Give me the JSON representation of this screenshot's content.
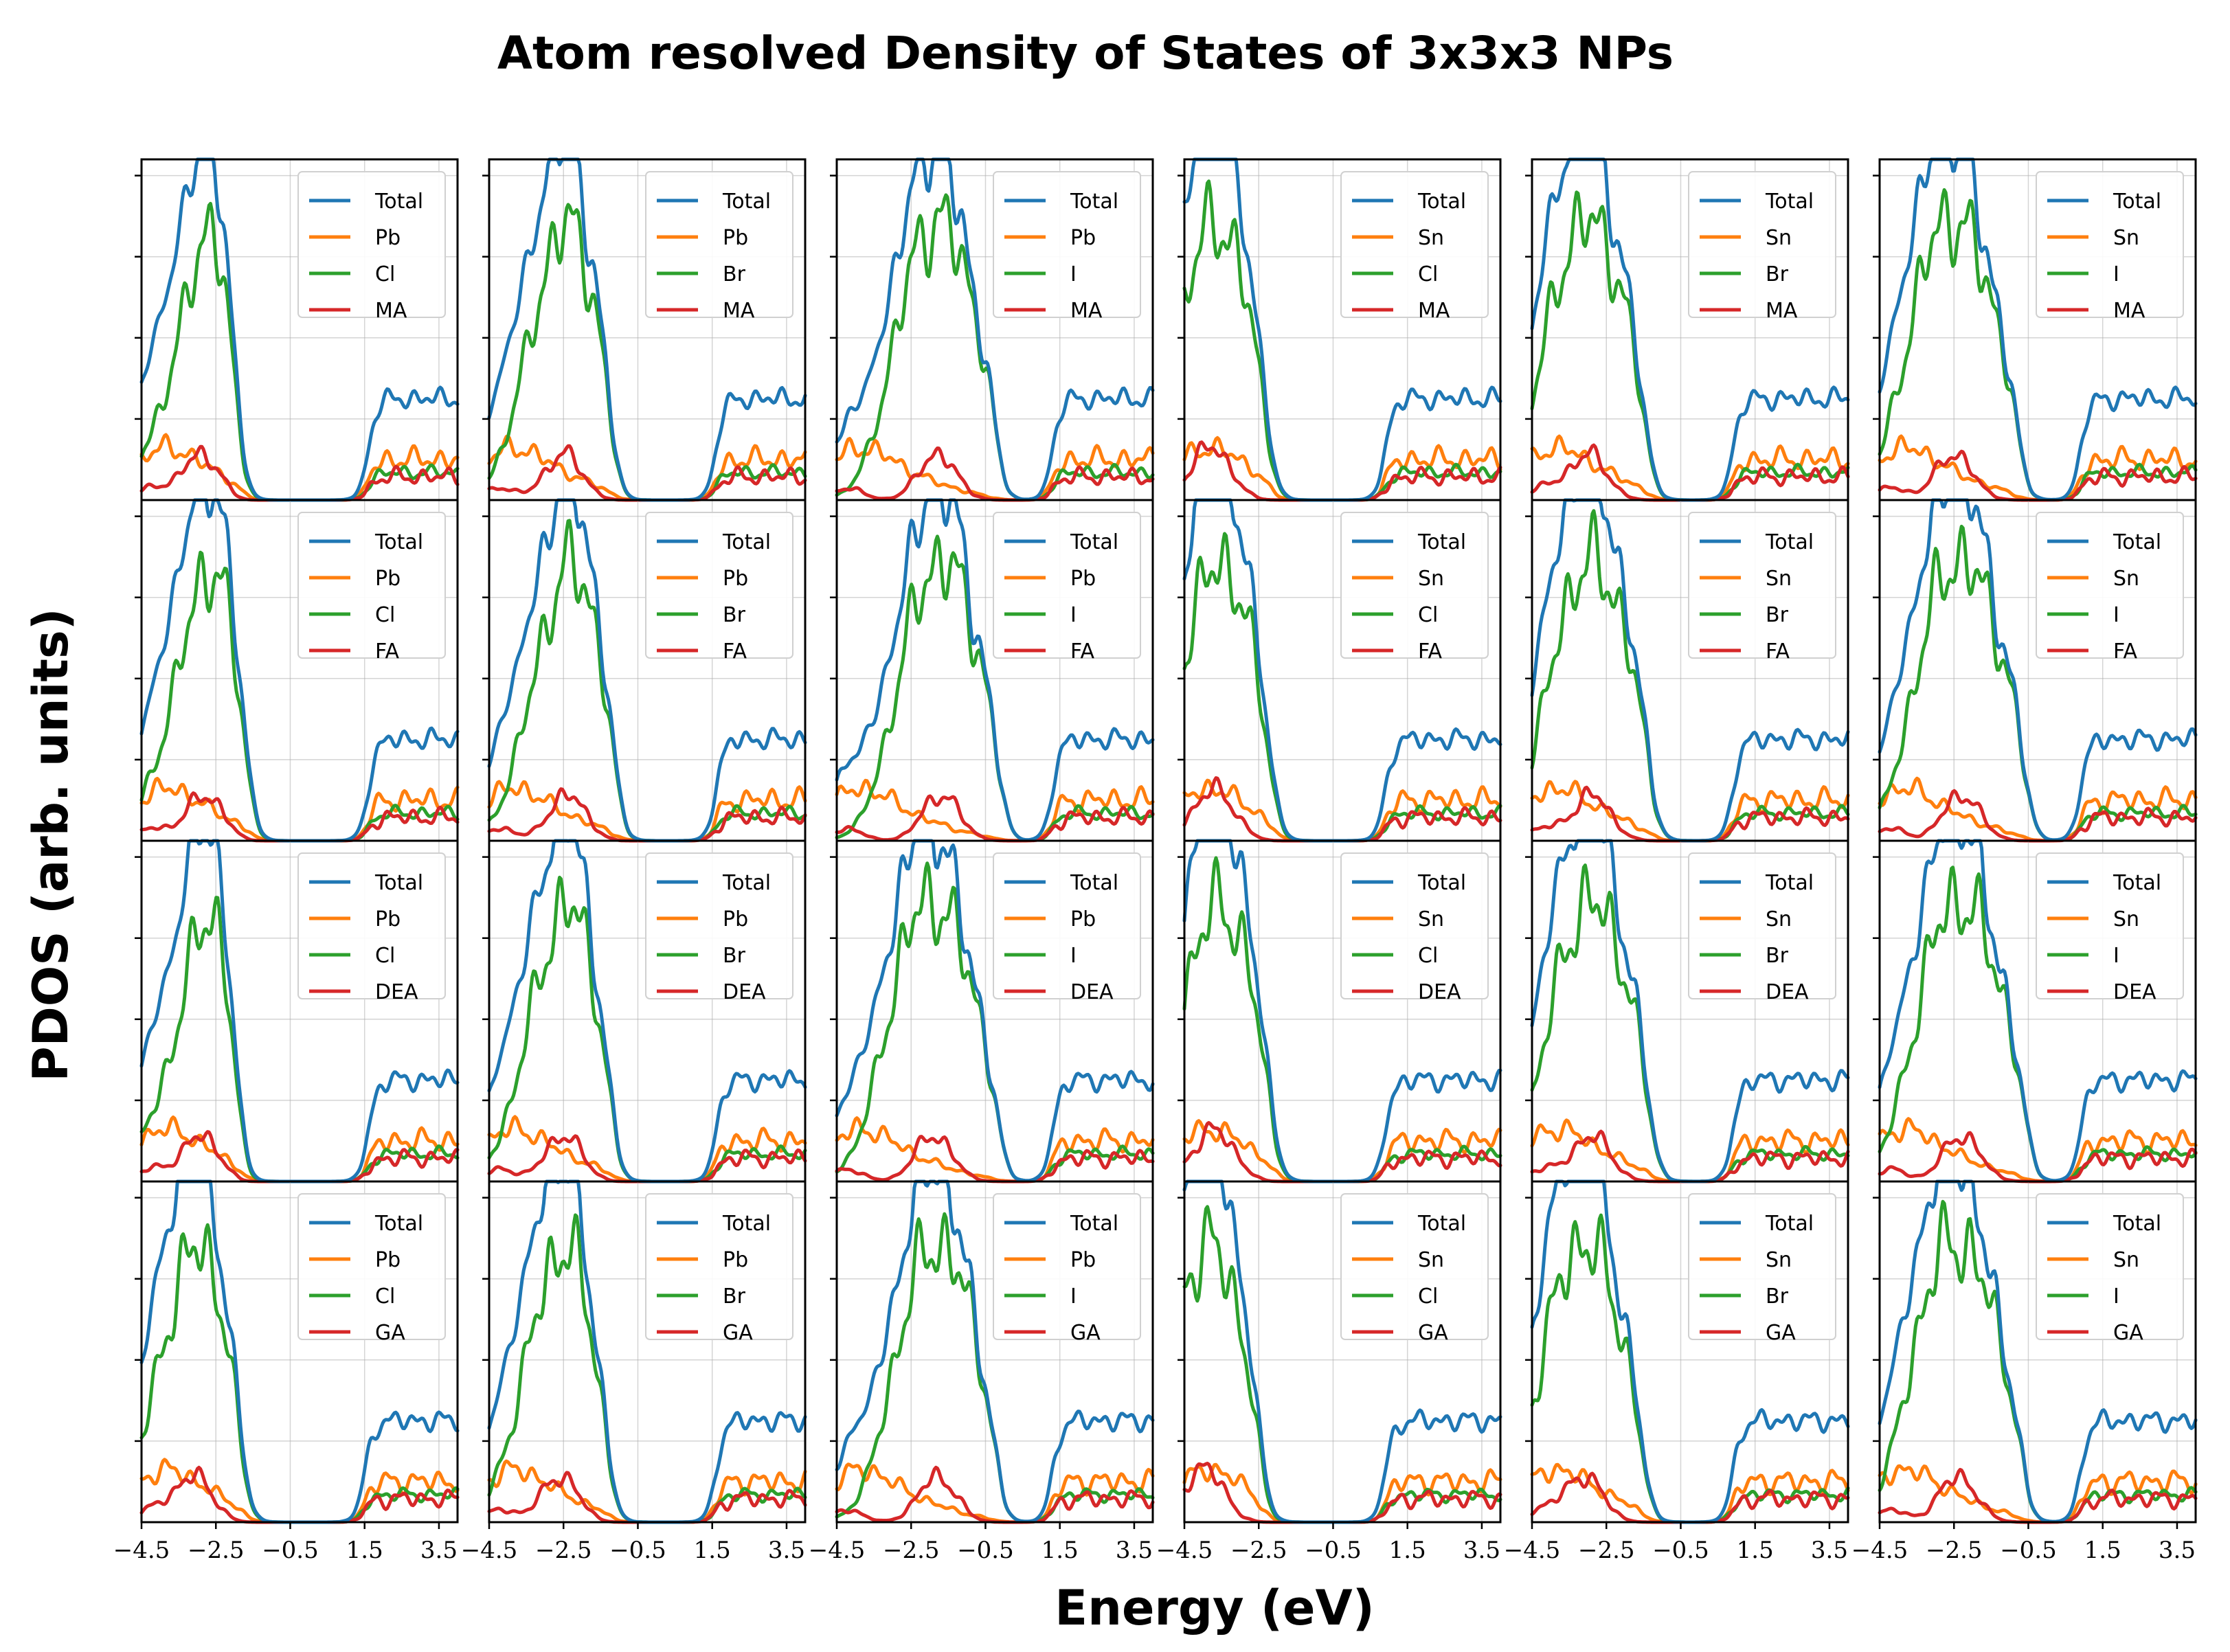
{
  "chart_data": {
    "type": "line",
    "title": "Atom resolved Density of States of 3x3x3 NPs",
    "xlabel": "Energy (eV)",
    "ylabel": "PDOS (arb. units)",
    "xlim": [
      -4.5,
      4.0
    ],
    "xticks": [
      -4.5,
      -2.5,
      -0.5,
      1.5,
      3.5
    ],
    "xtick_labels": [
      "−4.5",
      "−2.5",
      "−0.5",
      "1.5",
      "3.5"
    ],
    "ylim": [
      0,
      1.05
    ],
    "grid": true,
    "legend_position": "top-right",
    "series_colors": {
      "Total": "#1f77b4",
      "metal": "#ff7f0e",
      "halide": "#2ca02c",
      "cation": "#d62728"
    },
    "rows": [
      "MA",
      "FA",
      "DEA",
      "GA"
    ],
    "columns": [
      {
        "metal": "Pb",
        "halide": "Cl"
      },
      {
        "metal": "Pb",
        "halide": "Br"
      },
      {
        "metal": "Pb",
        "halide": "I"
      },
      {
        "metal": "Sn",
        "halide": "Cl"
      },
      {
        "metal": "Sn",
        "halide": "Br"
      },
      {
        "metal": "Sn",
        "halide": "I"
      }
    ],
    "panels": [
      {
        "row": 0,
        "col": 0,
        "legend": [
          "Total",
          "Pb",
          "Cl",
          "MA"
        ],
        "vb_peak": -2.6,
        "vb_width": 0.6,
        "cb_onset": 1.6
      },
      {
        "row": 0,
        "col": 1,
        "legend": [
          "Total",
          "Pb",
          "Br",
          "MA"
        ],
        "vb_peak": -2.2,
        "vb_width": 0.8,
        "cb_onset": 1.6
      },
      {
        "row": 0,
        "col": 2,
        "legend": [
          "Total",
          "Pb",
          "I",
          "MA"
        ],
        "vb_peak": -1.5,
        "vb_width": 1.0,
        "cb_onset": 1.3
      },
      {
        "row": 0,
        "col": 3,
        "legend": [
          "Total",
          "Sn",
          "Cl",
          "MA"
        ],
        "vb_peak": -3.4,
        "vb_width": 0.9,
        "cb_onset": 0.9
      },
      {
        "row": 0,
        "col": 4,
        "legend": [
          "Total",
          "Sn",
          "Br",
          "MA"
        ],
        "vb_peak": -2.7,
        "vb_width": 1.0,
        "cb_onset": 0.9
      },
      {
        "row": 0,
        "col": 5,
        "legend": [
          "Total",
          "Sn",
          "I",
          "MA"
        ],
        "vb_peak": -2.2,
        "vb_width": 1.1,
        "cb_onset": 0.9
      },
      {
        "row": 1,
        "col": 0,
        "legend": [
          "Total",
          "Pb",
          "Cl",
          "FA"
        ],
        "vb_peak": -2.5,
        "vb_width": 0.7,
        "cb_onset": 1.6
      },
      {
        "row": 1,
        "col": 1,
        "legend": [
          "Total",
          "Pb",
          "Br",
          "FA"
        ],
        "vb_peak": -2.1,
        "vb_width": 0.8,
        "cb_onset": 1.6
      },
      {
        "row": 1,
        "col": 2,
        "legend": [
          "Total",
          "Pb",
          "I",
          "FA"
        ],
        "vb_peak": -1.4,
        "vb_width": 1.0,
        "cb_onset": 1.3
      },
      {
        "row": 1,
        "col": 3,
        "legend": [
          "Total",
          "Sn",
          "Cl",
          "FA"
        ],
        "vb_peak": -3.3,
        "vb_width": 0.9,
        "cb_onset": 0.9
      },
      {
        "row": 1,
        "col": 4,
        "legend": [
          "Total",
          "Sn",
          "Br",
          "FA"
        ],
        "vb_peak": -2.6,
        "vb_width": 1.0,
        "cb_onset": 0.9
      },
      {
        "row": 1,
        "col": 5,
        "legend": [
          "Total",
          "Sn",
          "I",
          "FA"
        ],
        "vb_peak": -2.0,
        "vb_width": 1.1,
        "cb_onset": 0.9
      },
      {
        "row": 2,
        "col": 0,
        "legend": [
          "Total",
          "Pb",
          "Cl",
          "DEA"
        ],
        "vb_peak": -2.6,
        "vb_width": 0.6,
        "cb_onset": 1.6
      },
      {
        "row": 2,
        "col": 1,
        "legend": [
          "Total",
          "Pb",
          "Br",
          "DEA"
        ],
        "vb_peak": -2.2,
        "vb_width": 0.8,
        "cb_onset": 1.6
      },
      {
        "row": 2,
        "col": 2,
        "legend": [
          "Total",
          "Pb",
          "I",
          "DEA"
        ],
        "vb_peak": -1.6,
        "vb_width": 1.1,
        "cb_onset": 1.3
      },
      {
        "row": 2,
        "col": 3,
        "legend": [
          "Total",
          "Sn",
          "Cl",
          "DEA"
        ],
        "vb_peak": -3.3,
        "vb_width": 0.9,
        "cb_onset": 0.9
      },
      {
        "row": 2,
        "col": 4,
        "legend": [
          "Total",
          "Sn",
          "Br",
          "DEA"
        ],
        "vb_peak": -2.6,
        "vb_width": 1.0,
        "cb_onset": 0.9
      },
      {
        "row": 2,
        "col": 5,
        "legend": [
          "Total",
          "Sn",
          "I",
          "DEA"
        ],
        "vb_peak": -2.0,
        "vb_width": 1.1,
        "cb_onset": 0.9
      },
      {
        "row": 3,
        "col": 0,
        "legend": [
          "Total",
          "Pb",
          "Cl",
          "GA"
        ],
        "vb_peak": -2.8,
        "vb_width": 0.8,
        "cb_onset": 1.5
      },
      {
        "row": 3,
        "col": 1,
        "legend": [
          "Total",
          "Pb",
          "Br",
          "GA"
        ],
        "vb_peak": -2.3,
        "vb_width": 0.8,
        "cb_onset": 1.6
      },
      {
        "row": 3,
        "col": 2,
        "legend": [
          "Total",
          "Pb",
          "I",
          "GA"
        ],
        "vb_peak": -1.5,
        "vb_width": 1.0,
        "cb_onset": 1.3
      },
      {
        "row": 3,
        "col": 3,
        "legend": [
          "Total",
          "Sn",
          "Cl",
          "GA"
        ],
        "vb_peak": -3.6,
        "vb_width": 0.9,
        "cb_onset": 0.9
      },
      {
        "row": 3,
        "col": 4,
        "legend": [
          "Total",
          "Sn",
          "Br",
          "GA"
        ],
        "vb_peak": -2.8,
        "vb_width": 1.0,
        "cb_onset": 0.9
      },
      {
        "row": 3,
        "col": 5,
        "legend": [
          "Total",
          "Sn",
          "I",
          "GA"
        ],
        "vb_peak": -2.1,
        "vb_width": 1.1,
        "cb_onset": 0.9
      }
    ]
  }
}
